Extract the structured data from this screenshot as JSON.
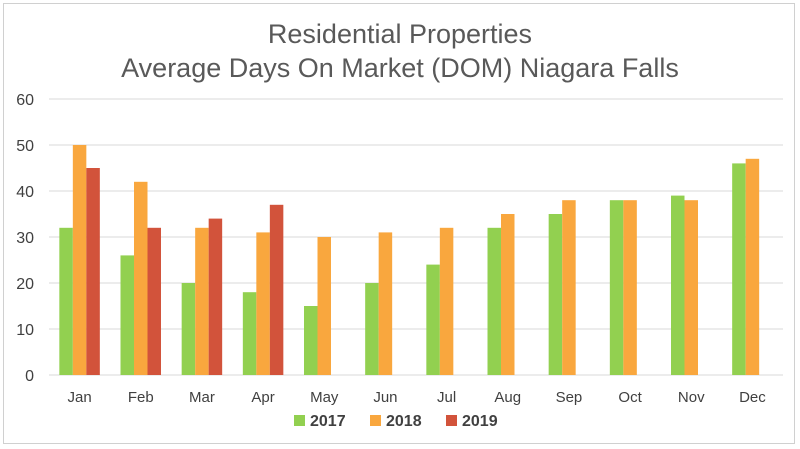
{
  "chart_data": {
    "type": "bar",
    "title": [
      "Residential Properties",
      "Average Days On Market (DOM) Niagara Falls"
    ],
    "xlabel": "",
    "ylabel": "",
    "ylim": [
      0,
      60
    ],
    "yticks": [
      0,
      10,
      20,
      30,
      40,
      50,
      60
    ],
    "grid": true,
    "legend_position": "bottom",
    "categories": [
      "Jan",
      "Feb",
      "Mar",
      "Apr",
      "May",
      "Jun",
      "Jul",
      "Aug",
      "Sep",
      "Oct",
      "Nov",
      "Dec"
    ],
    "series": [
      {
        "name": "2017",
        "color": "#92d050",
        "values": [
          32,
          26,
          20,
          18,
          15,
          20,
          24,
          32,
          35,
          38,
          39,
          46
        ]
      },
      {
        "name": "2018",
        "color": "#f9a73e",
        "values": [
          50,
          42,
          32,
          31,
          30,
          31,
          32,
          35,
          38,
          38,
          38,
          47
        ]
      },
      {
        "name": "2019",
        "color": "#d2533b",
        "values": [
          45,
          32,
          34,
          37,
          null,
          null,
          null,
          null,
          null,
          null,
          null,
          null
        ]
      }
    ]
  }
}
